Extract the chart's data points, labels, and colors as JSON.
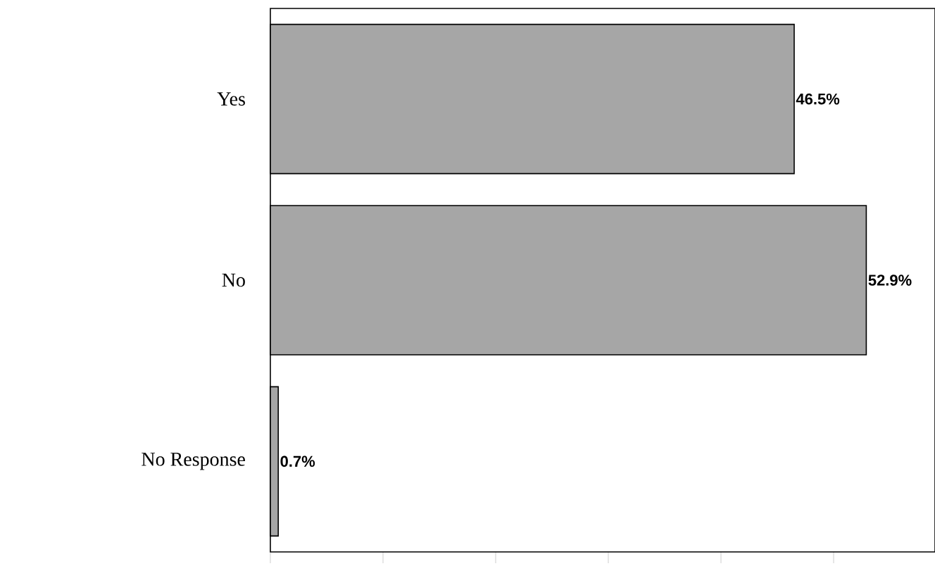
{
  "chart_data": {
    "type": "bar",
    "orientation": "horizontal",
    "categories": [
      "Yes",
      "No",
      "No Response"
    ],
    "values": [
      46.5,
      52.9,
      0.7
    ],
    "value_labels": [
      "46.5%",
      "52.9%",
      "0.7%"
    ],
    "color": "#a6a6a6",
    "xlim": [
      0,
      59
    ],
    "xticks": [
      {
        "value": 0,
        "label": null
      },
      {
        "value": 10,
        "label": null
      },
      {
        "value": 20,
        "label": null
      },
      {
        "value": 30,
        "label": null
      },
      {
        "value": 40,
        "label": null
      },
      {
        "value": 50,
        "label": null
      }
    ],
    "tick_labels": "y",
    "grid": false
  }
}
